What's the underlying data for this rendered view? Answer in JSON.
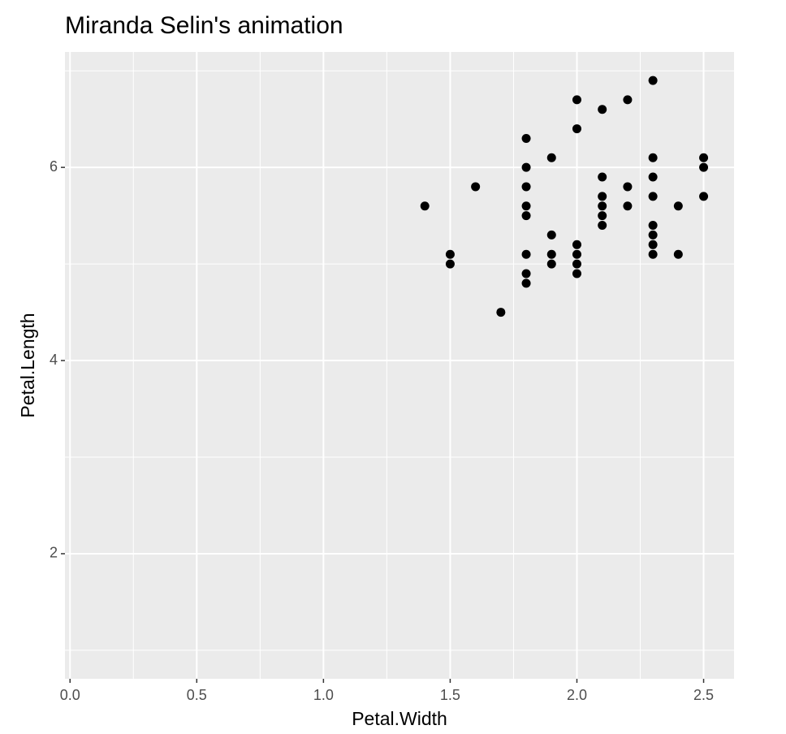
{
  "chart_data": {
    "type": "scatter",
    "title": "Miranda Selin's animation",
    "x_label": "Petal.Width",
    "y_label": "Petal.Length",
    "x": [
      1.4,
      1.5,
      1.5,
      1.6,
      1.7,
      1.8,
      1.8,
      1.8,
      1.8,
      1.8,
      1.8,
      1.8,
      1.8,
      1.9,
      1.9,
      1.9,
      1.9,
      2.0,
      2.0,
      2.0,
      2.0,
      2.0,
      2.0,
      2.1,
      2.1,
      2.1,
      2.1,
      2.1,
      2.1,
      2.2,
      2.2,
      2.2,
      2.3,
      2.3,
      2.3,
      2.3,
      2.3,
      2.3,
      2.3,
      2.3,
      2.4,
      2.4,
      2.5,
      2.5,
      2.5
    ],
    "y": [
      5.6,
      5.1,
      5.0,
      5.8,
      4.5,
      6.3,
      6.0,
      5.8,
      5.6,
      5.5,
      5.1,
      4.9,
      4.8,
      6.1,
      5.3,
      5.1,
      5.0,
      6.7,
      6.4,
      5.2,
      5.1,
      5.0,
      4.9,
      6.6,
      5.9,
      5.7,
      5.6,
      5.5,
      5.4,
      6.7,
      5.8,
      5.6,
      6.9,
      6.1,
      5.9,
      5.7,
      5.4,
      5.3,
      5.2,
      5.1,
      5.6,
      5.1,
      6.1,
      6.0,
      5.7
    ],
    "color": "#000000",
    "xlim": [
      -0.02,
      2.62
    ],
    "ylim": [
      0.705,
      7.195
    ],
    "xticks": [
      {
        "value": 0,
        "label": "0.0"
      },
      0.5,
      {
        "value": 1,
        "label": "1.0"
      },
      1.5,
      {
        "value": 2,
        "label": "2.0"
      },
      2.5
    ],
    "yticks": [
      2,
      4,
      6
    ],
    "grid": true
  }
}
